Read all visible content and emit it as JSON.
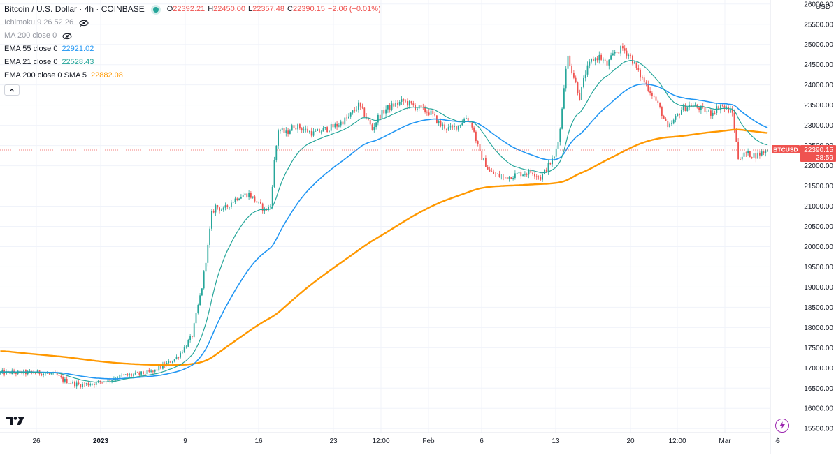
{
  "header": {
    "title": "Bitcoin / U.S. Dollar · 4h · COINBASE",
    "ohlc": [
      {
        "key": "O",
        "value": "22392.21"
      },
      {
        "key": "H",
        "value": "22450.00"
      },
      {
        "key": "L",
        "value": "22357.48"
      },
      {
        "key": "C",
        "value": "22390.15"
      }
    ],
    "change": "−2.06 (−0.01%)",
    "currency": "USD"
  },
  "indicators": [
    {
      "name": "Ichimoku 9 26 52 26",
      "value": "",
      "color": "",
      "hidden": true
    },
    {
      "name": "MA 200 close 0",
      "value": "",
      "color": "",
      "hidden": true
    },
    {
      "name": "EMA 55 close 0",
      "value": "22921.02",
      "color": "#2196f3",
      "hidden": false
    },
    {
      "name": "EMA 21 close 0",
      "value": "22528.43",
      "color": "#26a69a",
      "hidden": false
    },
    {
      "name": "EMA 200 close 0 SMA 5",
      "value": "22882.08",
      "color": "#ff9800",
      "hidden": false
    }
  ],
  "price_tag": {
    "symbol": "BTCUSD",
    "price": "22390.15",
    "countdown": "28:59"
  },
  "chart_data": {
    "type": "line",
    "title": "Bitcoin / U.S. Dollar · 4h · COINBASE",
    "ylim": [
      15400,
      26100
    ],
    "y_ticks": [
      15500,
      16000,
      16500,
      17000,
      17500,
      18000,
      18500,
      19000,
      19500,
      20000,
      20500,
      21000,
      21500,
      22000,
      22500,
      23000,
      23500,
      24000,
      24500,
      25000,
      25500,
      26000
    ],
    "x_ticks": [
      "26",
      "2023",
      "9",
      "16",
      "23",
      "12:00",
      "Feb",
      "6",
      "13",
      "20",
      "12:00",
      "Mar",
      "6"
    ],
    "grid": true,
    "legend": "top-left",
    "colors": {
      "up": "#26a69a",
      "down": "#ef5350",
      "ema55": "#2196f3",
      "ema21": "#26a69a",
      "ema200": "#ff9800"
    },
    "price_anchors": [
      [
        0,
        16880
      ],
      [
        20,
        16880
      ],
      [
        28,
        16830
      ],
      [
        32,
        16700
      ],
      [
        40,
        16580
      ],
      [
        48,
        16620
      ],
      [
        55,
        16700
      ],
      [
        62,
        16800
      ],
      [
        70,
        16840
      ],
      [
        78,
        16900
      ],
      [
        85,
        17100
      ],
      [
        90,
        17250
      ],
      [
        94,
        17500
      ],
      [
        98,
        17800
      ],
      [
        100,
        18300
      ],
      [
        103,
        19000
      ],
      [
        106,
        20000
      ],
      [
        108,
        20800
      ],
      [
        110,
        21000
      ],
      [
        114,
        20900
      ],
      [
        118,
        21100
      ],
      [
        122,
        21250
      ],
      [
        127,
        21300
      ],
      [
        131,
        21100
      ],
      [
        135,
        20900
      ],
      [
        138,
        21000
      ],
      [
        140,
        22100
      ],
      [
        142,
        22900
      ],
      [
        146,
        22800
      ],
      [
        150,
        23000
      ],
      [
        155,
        22900
      ],
      [
        160,
        22800
      ],
      [
        166,
        22900
      ],
      [
        172,
        23000
      ],
      [
        178,
        23200
      ],
      [
        183,
        23500
      ],
      [
        187,
        23200
      ],
      [
        190,
        22900
      ],
      [
        193,
        23200
      ],
      [
        197,
        23400
      ],
      [
        201,
        23500
      ],
      [
        206,
        23600
      ],
      [
        210,
        23500
      ],
      [
        215,
        23400
      ],
      [
        220,
        23300
      ],
      [
        225,
        23000
      ],
      [
        230,
        22900
      ],
      [
        234,
        23000
      ],
      [
        238,
        23200
      ],
      [
        241,
        23000
      ],
      [
        245,
        22300
      ],
      [
        250,
        21850
      ],
      [
        257,
        21700
      ],
      [
        265,
        21800
      ],
      [
        272,
        21850
      ],
      [
        276,
        21700
      ],
      [
        280,
        22000
      ],
      [
        283,
        22200
      ],
      [
        286,
        22900
      ],
      [
        288,
        24000
      ],
      [
        290,
        24700
      ],
      [
        293,
        24200
      ],
      [
        296,
        23700
      ],
      [
        299,
        24300
      ],
      [
        302,
        24600
      ],
      [
        306,
        24700
      ],
      [
        310,
        24500
      ],
      [
        314,
        24800
      ],
      [
        318,
        24900
      ],
      [
        322,
        24700
      ],
      [
        326,
        24300
      ],
      [
        330,
        24000
      ],
      [
        334,
        23700
      ],
      [
        338,
        23300
      ],
      [
        341,
        22900
      ],
      [
        344,
        23100
      ],
      [
        348,
        23400
      ],
      [
        353,
        23500
      ],
      [
        358,
        23400
      ],
      [
        363,
        23300
      ],
      [
        368,
        23500
      ],
      [
        371,
        23400
      ],
      [
        374,
        23300
      ],
      [
        377,
        22200
      ],
      [
        381,
        22300
      ],
      [
        386,
        22250
      ],
      [
        392,
        22390
      ]
    ],
    "ema55_end": 22921.02,
    "ema21_end": 22528.43,
    "ema200_end": 22882.08,
    "last_close": 22390.15
  }
}
